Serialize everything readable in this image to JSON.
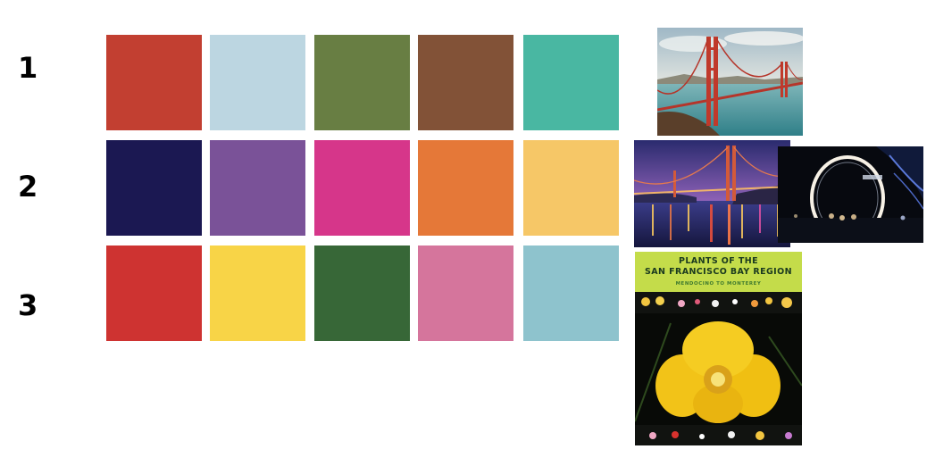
{
  "rows": [
    {
      "label": "1",
      "colors": [
        "#c23f31",
        "#bcd6e1",
        "#687e43",
        "#825237",
        "#49b7a2"
      ]
    },
    {
      "label": "2",
      "colors": [
        "#1b1852",
        "#7a5298",
        "#d6368a",
        "#e57838",
        "#f6c767"
      ]
    },
    {
      "label": "3",
      "colors": [
        "#ce3331",
        "#f8d447",
        "#376737",
        "#d5759c",
        "#8ec3cd"
      ]
    }
  ],
  "images": {
    "golden_gate_day": {
      "icon": "golden-gate-bridge-day-photo"
    },
    "golden_gate_night": {
      "icon": "golden-gate-bridge-night-photo"
    },
    "night_light_ring": {
      "icon": "night-light-ring-photo"
    },
    "book_cover": {
      "icon": "plants-book-cover",
      "title_line1": "PLANTS OF THE",
      "title_line2": "SAN FRANCISCO BAY REGION",
      "subtitle": "MENDOCINO TO MONTEREY"
    }
  }
}
